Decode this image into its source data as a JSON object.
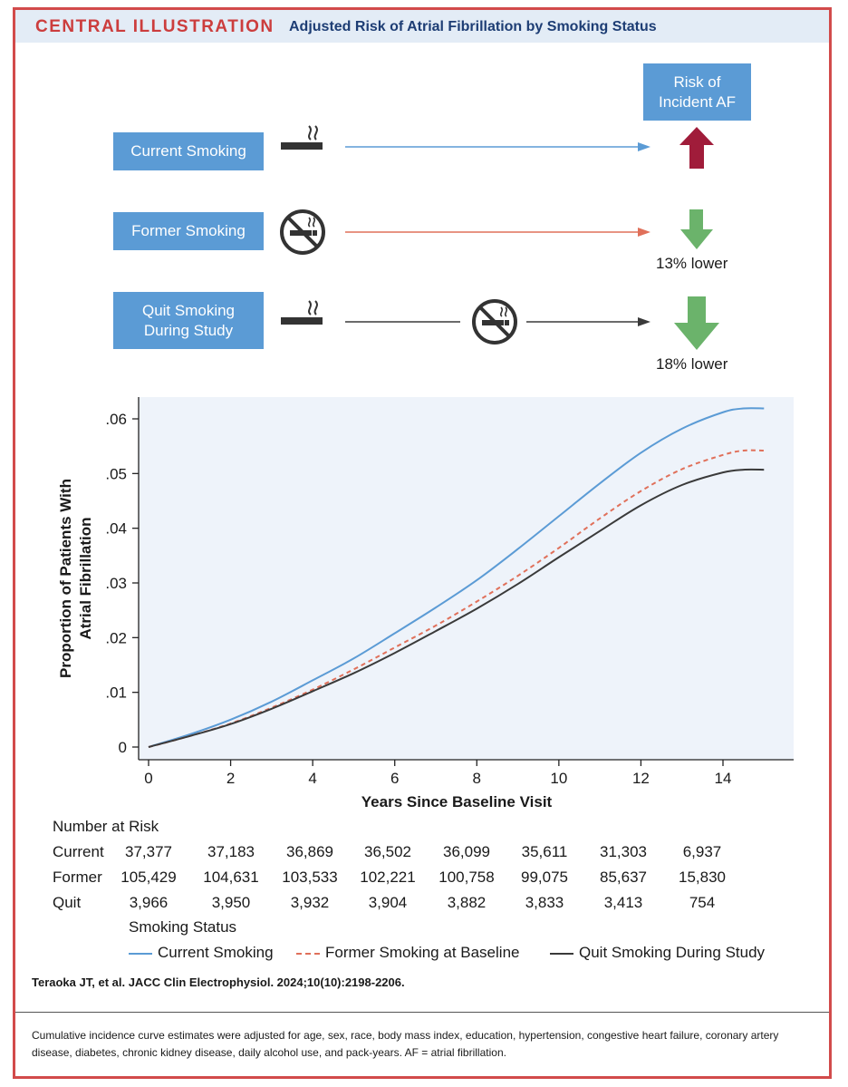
{
  "header": {
    "badge": "CENTRAL ILLUSTRATION",
    "title": "Adjusted Risk of Atrial Fibrillation by Smoking Status"
  },
  "diagram": {
    "risk_header_lines": [
      "Risk of",
      "Incident AF"
    ],
    "rows": [
      {
        "label_lines": [
          "Current Smoking"
        ],
        "result": "",
        "direction": "up",
        "color": "#5b9bd5",
        "icon": "cigarette-icon"
      },
      {
        "label_lines": [
          "Former Smoking"
        ],
        "result": "13% lower",
        "direction": "down",
        "color": "#e0705a",
        "icon": "no-smoking-icon"
      },
      {
        "label_lines": [
          "Quit Smoking",
          "During Study"
        ],
        "result": "18% lower",
        "direction": "down",
        "color": "#3a3a3a",
        "icon": "cigarette-to-no-smoking-icon"
      }
    ],
    "colors": {
      "box": "#5b9bd5",
      "up_arrow": "#a01c3a",
      "down_arrow": "#6bb36b"
    }
  },
  "chart_data": {
    "type": "line",
    "title": "",
    "xlabel": "Years Since Baseline Visit",
    "ylabel_lines": [
      "Proportion of Patients With",
      "Atrial Fibrillation"
    ],
    "xlim": [
      0,
      15
    ],
    "ylim": [
      0,
      0.062
    ],
    "x_ticks": [
      0,
      2,
      4,
      6,
      8,
      10,
      12,
      14
    ],
    "x_tick_labels": [
      "0",
      "2",
      "4",
      "6",
      "8",
      "10",
      "12",
      "14"
    ],
    "y_ticks": [
      0,
      0.01,
      0.02,
      0.03,
      0.04,
      0.05,
      0.06
    ],
    "y_tick_labels": [
      "0",
      ".01",
      ".02",
      ".03",
      ".04",
      ".05",
      ".06"
    ],
    "x": [
      0,
      1,
      2,
      3,
      4,
      5,
      6,
      7,
      8,
      9,
      10,
      11,
      12,
      13,
      14,
      14.5,
      15
    ],
    "series": [
      {
        "name": "Current Smoking",
        "color": "#5b9bd5",
        "dash": "solid",
        "values": [
          0,
          0.0023,
          0.005,
          0.0083,
          0.0122,
          0.0162,
          0.0208,
          0.0255,
          0.0305,
          0.0362,
          0.0422,
          0.0482,
          0.0538,
          0.0582,
          0.0612,
          0.0619,
          0.0619
        ]
      },
      {
        "name": "Former Smoking at Baseline",
        "color": "#e0705a",
        "dash": "dashed",
        "values": [
          0,
          0.002,
          0.0043,
          0.0072,
          0.0105,
          0.0142,
          0.0182,
          0.0222,
          0.0266,
          0.0313,
          0.0364,
          0.0418,
          0.0468,
          0.0508,
          0.0534,
          0.0542,
          0.0542
        ]
      },
      {
        "name": "Quit Smoking During Study",
        "color": "#3a3a3a",
        "dash": "solid",
        "values": [
          0,
          0.002,
          0.0042,
          0.007,
          0.0102,
          0.0135,
          0.0172,
          0.0212,
          0.0253,
          0.0298,
          0.0347,
          0.0395,
          0.0442,
          0.0479,
          0.0502,
          0.0507,
          0.0507
        ]
      }
    ],
    "grid": false,
    "legend_title": "Smoking Status",
    "legend_position": "bottom"
  },
  "number_at_risk": {
    "title": "Number at Risk",
    "rows": [
      {
        "label": "Current",
        "values": [
          "37,377",
          "37,183",
          "36,869",
          "36,502",
          "36,099",
          "35,611",
          "31,303",
          "6,937"
        ]
      },
      {
        "label": "Former",
        "values": [
          "105,429",
          "104,631",
          "103,533",
          "102,221",
          "100,758",
          "99,075",
          "85,637",
          "15,830"
        ]
      },
      {
        "label": "Quit",
        "values": [
          "3,966",
          "3,950",
          "3,932",
          "3,904",
          "3,882",
          "3,833",
          "3,413",
          "754"
        ]
      }
    ]
  },
  "citation": "Teraoka JT, et al. JACC Clin Electrophysiol. 2024;10(10):2198-2206.",
  "footnote": "Cumulative incidence curve estimates were adjusted for age, sex, race, body mass index, education, hypertension, congestive heart failure, coronary artery disease, diabetes, chronic kidney disease, daily alcohol use, and pack-years. AF = atrial fibrillation."
}
